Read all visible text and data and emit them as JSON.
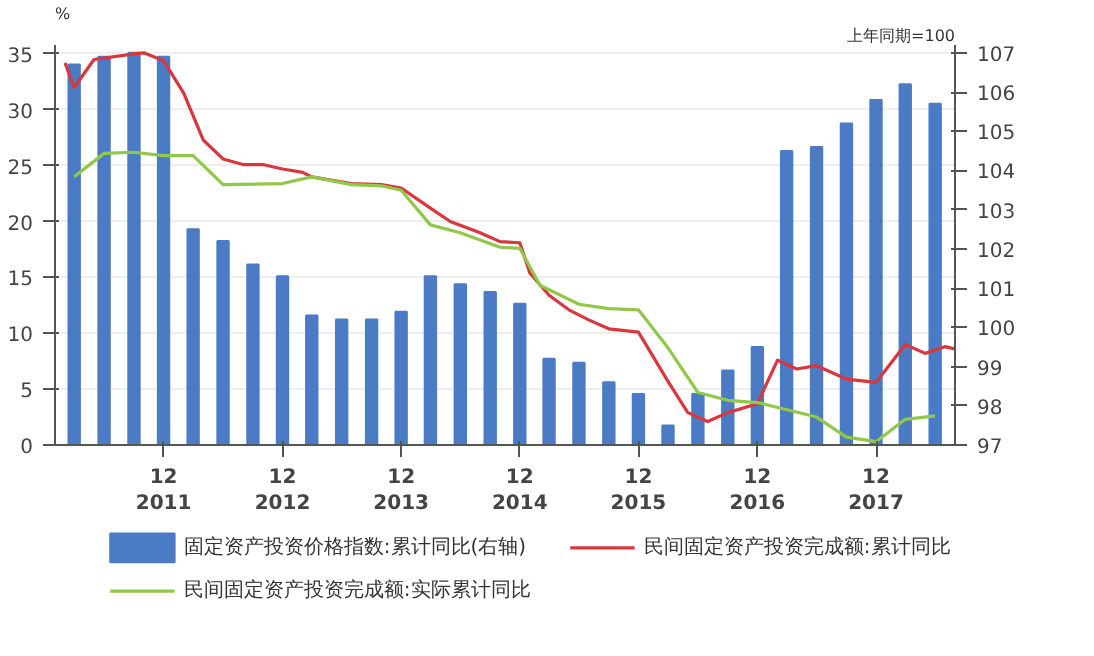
{
  "chart_data": {
    "type": "bar",
    "ylabel": "%",
    "y2label": "上年同期=100",
    "x": [
      "2011-03",
      "2011-06",
      "2011-09",
      "2011-12",
      "2012-03",
      "2012-06",
      "2012-09",
      "2012-12",
      "2013-03",
      "2013-06",
      "2013-09",
      "2013-12",
      "2014-03",
      "2014-06",
      "2014-09",
      "2014-12",
      "2015-03",
      "2015-06",
      "2015-09",
      "2015-12",
      "2016-03",
      "2016-06",
      "2016-09",
      "2016-12",
      "2017-03",
      "2017-06",
      "2017-09",
      "2017-12",
      "2018-03",
      "2018-06"
    ],
    "series": [
      {
        "name": "固定资产投资价格指数:累计同比(右轴)",
        "axis": "y2",
        "color": "#4a7bc4",
        "values": [
          106.7,
          106.9,
          107.0,
          106.9,
          102.5,
          102.2,
          101.6,
          101.3,
          100.3,
          100.2,
          100.2,
          100.4,
          101.3,
          101.1,
          100.9,
          100.6,
          99.2,
          99.1,
          98.6,
          98.3,
          97.5,
          98.3,
          98.9,
          99.5,
          104.5,
          104.6,
          105.2,
          105.8,
          106.2,
          105.7
        ]
      },
      {
        "name": "民间固定资产投资完成额:累计同比",
        "type": "line",
        "color": "#d9363e",
        "x": [
          "2011-02",
          "2011-03",
          "2011-05",
          "2011-09",
          "2011-10",
          "2011-12",
          "2012-02",
          "2012-04",
          "2012-06",
          "2012-08",
          "2012-10",
          "2012-12",
          "2013-02",
          "2013-03",
          "2013-07",
          "2013-10",
          "2013-12",
          "2014-03",
          "2014-05",
          "2014-08",
          "2014-10",
          "2014-12",
          "2015-01",
          "2015-03",
          "2015-05",
          "2015-07",
          "2015-09",
          "2015-12",
          "2016-03",
          "2016-05",
          "2016-07",
          "2016-09",
          "2016-12",
          "2017-02",
          "2017-04",
          "2017-06",
          "2017-09",
          "2017-12",
          "2018-03",
          "2018-05",
          "2018-07",
          "2018-08"
        ],
        "values": [
          34.2,
          32,
          34.5,
          35,
          35.1,
          34.4,
          31.5,
          27.3,
          25.6,
          25.1,
          25.1,
          24.7,
          24.4,
          24,
          23.4,
          23.3,
          23,
          21.2,
          20,
          19,
          18.2,
          18.1,
          15.4,
          13.4,
          12.1,
          11.2,
          10.4,
          10.1,
          5.7,
          2.9,
          2.1,
          2.9,
          3.7,
          7.6,
          6.8,
          7.1,
          5.9,
          5.6,
          9.0,
          8.2,
          8.8,
          8.6
        ]
      },
      {
        "name": "民间固定资产投资完成额:实际累计同比",
        "type": "line",
        "color": "#92c84a",
        "x": [
          "2011-03",
          "2011-06",
          "2011-09",
          "2011-12",
          "2012-03",
          "2012-06",
          "2012-12",
          "2013-03",
          "2013-07",
          "2013-10",
          "2013-12",
          "2014-03",
          "2014-06",
          "2014-10",
          "2014-12",
          "2015-02",
          "2015-06",
          "2015-09",
          "2015-12",
          "2016-03",
          "2016-06",
          "2016-09",
          "2016-12",
          "2017-06",
          "2017-09",
          "2017-12",
          "2018-03",
          "2018-06"
        ],
        "values": [
          24,
          26.1,
          26.2,
          25.9,
          25.9,
          23.3,
          23.4,
          24,
          23.3,
          23.2,
          22.8,
          19.7,
          19,
          17.7,
          17.6,
          14.3,
          12.6,
          12.2,
          12.1,
          8.7,
          4.7,
          4.0,
          3.8,
          2.5,
          0.7,
          0.3,
          2.3,
          2.6
        ]
      }
    ],
    "xlim": [
      "2011-01",
      "2018-08"
    ],
    "xticks": [
      {
        "value": "2011-12",
        "label": "12\n2011"
      },
      {
        "value": "2012-12",
        "label": "12\n2012"
      },
      {
        "value": "2013-12",
        "label": "12\n2013"
      },
      {
        "value": "2014-12",
        "label": "12\n2014"
      },
      {
        "value": "2015-12",
        "label": "12\n2015"
      },
      {
        "value": "2016-12",
        "label": "12\n2016"
      },
      {
        "value": "2017-12",
        "label": "12\n2017"
      }
    ],
    "ylim": [
      0,
      35.8
    ],
    "yticks": [
      0,
      5,
      10,
      15,
      20,
      25,
      30,
      35
    ],
    "y2lim": [
      97,
      107.2
    ],
    "y2ticks": [
      97,
      98,
      99,
      100,
      101,
      102,
      103,
      104,
      105,
      106,
      107
    ],
    "grid": "y",
    "legend": "bottom"
  }
}
